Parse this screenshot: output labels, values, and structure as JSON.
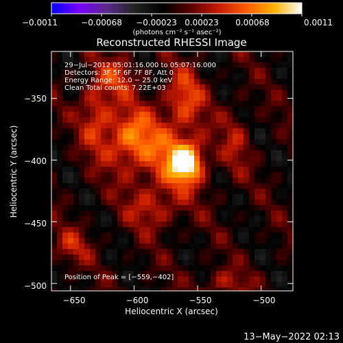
{
  "colorbar": {
    "tick_labels": [
      "−0.0011",
      "−0.00068",
      "−0.00023",
      "0.00023",
      "0.00068",
      "0.0011"
    ],
    "unit_label": "(photons cm⁻² s⁻¹ asec⁻²)",
    "range": [
      -0.0011,
      0.0011
    ],
    "colormap": [
      "#0000ff",
      "#7a00ff",
      "#5a2a8a",
      "#222222",
      "#000000",
      "#5a0000",
      "#c41a00",
      "#ff5a00",
      "#ffb000",
      "#ffffff"
    ]
  },
  "plot": {
    "title": "Reconstructed RHESSI Image",
    "xlabel": "Heliocentric X (arcsec)",
    "ylabel": "Heliocentric Y (arcsec)",
    "x_tick_labels": [
      "−650",
      "−600",
      "−550",
      "−500"
    ],
    "y_tick_labels": [
      "−350",
      "−400",
      "−450",
      "−500"
    ],
    "x_ticks": [
      -650,
      -600,
      -550,
      -500
    ],
    "y_ticks": [
      -350,
      -400,
      -450,
      -500
    ],
    "xlim": [
      -665,
      -475
    ],
    "ylim": [
      -506,
      -312
    ]
  },
  "info": {
    "time_range": "29−Jul−2012 05:01:16.000 to 05:07:16.000",
    "detectors": "Detectors: 3F 5F 6F 7F 8F, Att 0",
    "energy_range": "Energy Range: 12.0 − 25.0 keV",
    "clean_counts": "Clean     Total counts: 7.22E+03",
    "peak_position": "Position of Peak = [−559,−402]"
  },
  "footer": {
    "timestamp": "13−May−2022 02:13"
  },
  "chart_data": {
    "type": "heatmap",
    "title": "Reconstructed RHESSI Image",
    "xlabel": "Heliocentric X (arcsec)",
    "ylabel": "Heliocentric Y (arcsec)",
    "xlim": [
      -665,
      -475
    ],
    "ylim": [
      -506,
      -312
    ],
    "value_range": [
      -0.0011,
      0.0011
    ],
    "peak": [
      -559,
      -402
    ],
    "peak_value": 0.0011,
    "sources": [
      {
        "x": -559,
        "y": -402,
        "sx": 9,
        "sy": 11,
        "amp": 1.0
      },
      {
        "x": -577,
        "y": -393,
        "sx": 22,
        "sy": 28,
        "amp": 0.42
      },
      {
        "x": -605,
        "y": -383,
        "sx": 13,
        "sy": 16,
        "amp": 0.5
      },
      {
        "x": -630,
        "y": -362,
        "sx": 9,
        "sy": 22,
        "amp": 0.45
      },
      {
        "x": -612,
        "y": -332,
        "sx": 10,
        "sy": 12,
        "amp": 0.35
      },
      {
        "x": -560,
        "y": -348,
        "sx": 10,
        "sy": 16,
        "amp": 0.42
      },
      {
        "x": -585,
        "y": -440,
        "sx": 14,
        "sy": 12,
        "amp": 0.3
      },
      {
        "x": -650,
        "y": -470,
        "sx": 11,
        "sy": 10,
        "amp": 0.32
      },
      {
        "x": -530,
        "y": -500,
        "sx": 14,
        "sy": 8,
        "amp": 0.3
      },
      {
        "x": -520,
        "y": -385,
        "sx": 8,
        "sy": 20,
        "amp": 0.25
      }
    ],
    "grid": false
  }
}
